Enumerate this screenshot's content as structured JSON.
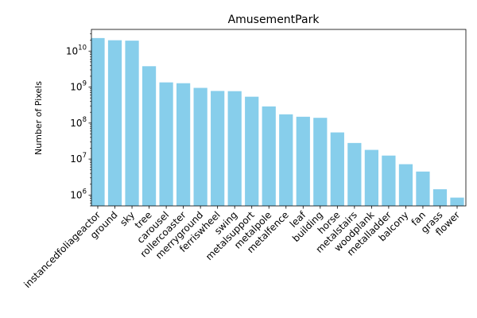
{
  "chart_data": {
    "type": "bar",
    "title": "AmusementPark",
    "xlabel": "",
    "ylabel": "Number of Pixels",
    "yscale": "log",
    "ylim": [
      500000,
      40000000000
    ],
    "yticks": [
      {
        "base": "10",
        "exp": "6",
        "value": 1000000
      },
      {
        "base": "10",
        "exp": "7",
        "value": 10000000
      },
      {
        "base": "10",
        "exp": "8",
        "value": 100000000
      },
      {
        "base": "10",
        "exp": "9",
        "value": 1000000000
      },
      {
        "base": "10",
        "exp": "10",
        "value": 10000000000
      }
    ],
    "bar_color": "#87CEEB",
    "grid": false,
    "categories": [
      "instancedfoliageactor",
      "ground",
      "sky",
      "tree",
      "carousel",
      "rollercoaster",
      "merryground",
      "ferriswheel",
      "swing",
      "metalsupport",
      "metalpole",
      "metalfence",
      "leaf",
      "building",
      "horse",
      "metalstairs",
      "woodplank",
      "metalladder",
      "balcony",
      "fan",
      "grass",
      "flower"
    ],
    "values": [
      23000000000,
      20000000000,
      19500000000,
      3800000000,
      1350000000,
      1280000000,
      950000000,
      780000000,
      770000000,
      540000000,
      290000000,
      175000000,
      150000000,
      140000000,
      55000000,
      28000000,
      18000000,
      12500000,
      7200000,
      4500000,
      1450000,
      850000
    ]
  }
}
